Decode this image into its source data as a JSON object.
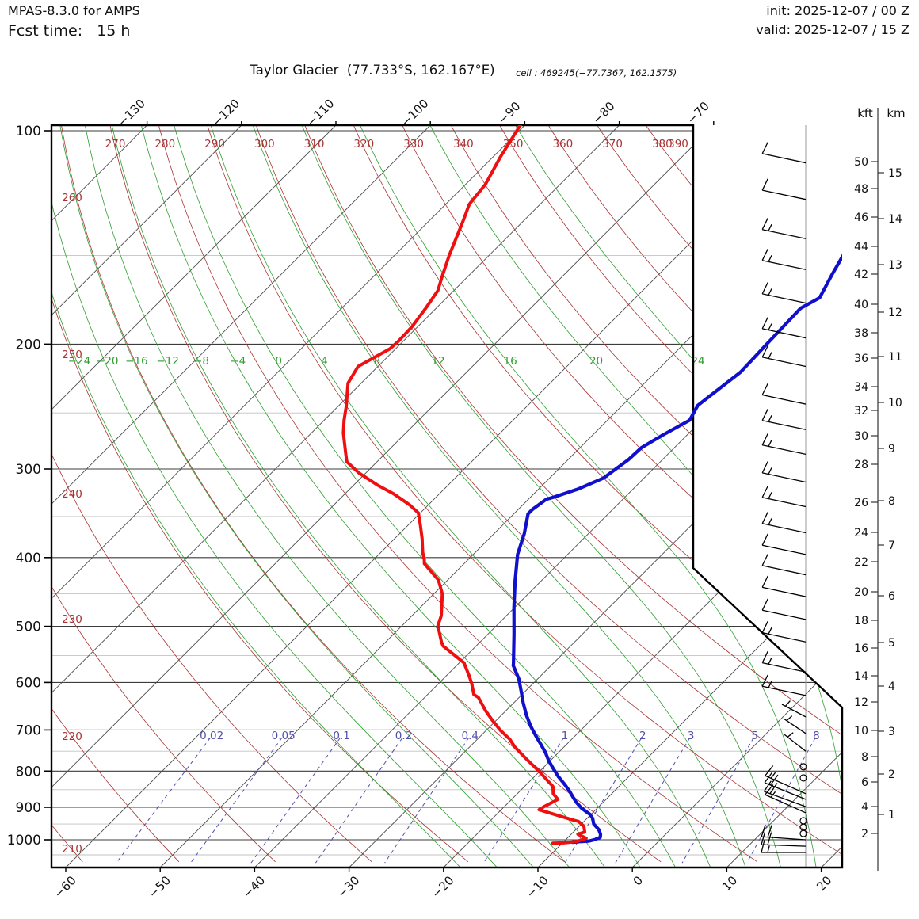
{
  "header": {
    "model": "MPAS-8.3.0 for AMPS",
    "fcst": "Fcst time:   15 h",
    "init": "init: 2025-12-07 / 00 Z",
    "valid": "valid: 2025-12-07 / 15 Z"
  },
  "title": {
    "main": "Taylor Glacier  (77.733°S, 162.167°E)",
    "cell": "cell : 469245(−77.7367, 162.1575)"
  },
  "colors": {
    "temperature": "#ee1010",
    "dewpoint": "#1010cc",
    "dry_adiabat": "#a83232",
    "moist_adiabat": "#2f9e2f",
    "mixing_ratio": "#5151ad",
    "isotherm": "#4a4a4a",
    "pressure_major": "#3c3c3c",
    "pressure_minor": "#c2c2c2",
    "border": "#000000",
    "barb": "#000000",
    "staff_line": "#999999"
  },
  "chart_data": {
    "type": "line",
    "subtype": "skew-t-log-p",
    "pressure_axis": {
      "unit": "hPa",
      "ticks": [
        100,
        200,
        300,
        400,
        500,
        600,
        700,
        800,
        900,
        1000
      ],
      "minor_ticks": [
        150,
        250,
        350,
        450,
        550,
        650,
        750,
        850,
        950,
        1050
      ]
    },
    "temp_ticks_top": [
      -130,
      -120,
      -110,
      -100,
      -90,
      -80,
      -70
    ],
    "temp_ticks_bottom": [
      -60,
      -50,
      -40,
      -30,
      -20,
      -10,
      0,
      10,
      20
    ],
    "dry_adiabats_K": [
      210,
      220,
      230,
      240,
      250,
      260,
      270,
      280,
      290,
      300,
      310,
      320,
      330,
      340,
      350,
      360,
      370,
      380,
      390
    ],
    "dry_adiabat_top_labels": [
      270,
      280,
      290,
      300,
      310,
      320,
      330,
      340,
      350,
      360,
      370,
      380,
      390
    ],
    "dry_adiabat_left_labels": [
      210,
      220,
      230,
      240,
      250,
      260
    ],
    "moist_adiabats_C": [
      -24,
      -20,
      -16,
      -12,
      -8,
      -4,
      0,
      4,
      8,
      12,
      16,
      20,
      24
    ],
    "mixing_ratio_g_kg": [
      0.02,
      0.05,
      0.1,
      0.2,
      0.4,
      1,
      2,
      3,
      5,
      8
    ],
    "height_axis": {
      "kft_label": "kft",
      "km_label": "km",
      "kft_ticks": [
        [
          50,
          204
        ],
        [
          48,
          238
        ],
        [
          46,
          274
        ],
        [
          44,
          311
        ],
        [
          42,
          346
        ],
        [
          40,
          384
        ],
        [
          38,
          420
        ],
        [
          36,
          452
        ],
        [
          34,
          488
        ],
        [
          32,
          518
        ],
        [
          30,
          550
        ],
        [
          28,
          586
        ],
        [
          26,
          634
        ],
        [
          24,
          672
        ],
        [
          22,
          709
        ],
        [
          20,
          747
        ],
        [
          18,
          783
        ],
        [
          16,
          818
        ],
        [
          14,
          853
        ],
        [
          12,
          886
        ],
        [
          10,
          922
        ],
        [
          8,
          955
        ],
        [
          6,
          987
        ],
        [
          4,
          1018
        ],
        [
          2,
          1052
        ]
      ],
      "km_ticks": [
        [
          15,
          218
        ],
        [
          14,
          276
        ],
        [
          13,
          334
        ],
        [
          12,
          394
        ],
        [
          11,
          450
        ],
        [
          10,
          508
        ],
        [
          9,
          566
        ],
        [
          8,
          632
        ],
        [
          7,
          688
        ],
        [
          6,
          752
        ],
        [
          5,
          811
        ],
        [
          4,
          866
        ],
        [
          3,
          923
        ],
        [
          2,
          977
        ],
        [
          1,
          1028
        ]
      ]
    },
    "series": {
      "temperature": [
        [
          98,
          -90.5
        ],
        [
          109,
          -89.2
        ],
        [
          119,
          -87.9
        ],
        [
          127,
          -87.5
        ],
        [
          134,
          -86.4
        ],
        [
          150,
          -84.2
        ],
        [
          160,
          -82.8
        ],
        [
          168,
          -81.7
        ],
        [
          178,
          -81.1
        ],
        [
          189,
          -80.6
        ],
        [
          198,
          -80.5
        ],
        [
          203,
          -80.6
        ],
        [
          215,
          -82.1
        ],
        [
          227,
          -81.4
        ],
        [
          245,
          -79.1
        ],
        [
          256,
          -77.9
        ],
        [
          267,
          -76.6
        ],
        [
          286,
          -74.1
        ],
        [
          293,
          -73.2
        ],
        [
          304,
          -70.7
        ],
        [
          316,
          -67.5
        ],
        [
          325,
          -64.9
        ],
        [
          337,
          -62.0
        ],
        [
          346,
          -60.2
        ],
        [
          360,
          -58.7
        ],
        [
          376,
          -57.1
        ],
        [
          393,
          -55.6
        ],
        [
          403,
          -54.6
        ],
        [
          408,
          -54.2
        ],
        [
          430,
          -51.0
        ],
        [
          450,
          -49.1
        ],
        [
          483,
          -46.9
        ],
        [
          499,
          -46.2
        ],
        [
          526,
          -44.1
        ],
        [
          533,
          -43.5
        ],
        [
          563,
          -39.5
        ],
        [
          568,
          -39.1
        ],
        [
          587,
          -37.6
        ],
        [
          602,
          -36.5
        ],
        [
          624,
          -35.1
        ],
        [
          630,
          -34.3
        ],
        [
          657,
          -32.2
        ],
        [
          675,
          -30.7
        ],
        [
          701,
          -28.5
        ],
        [
          721,
          -26.6
        ],
        [
          740,
          -25.2
        ],
        [
          767,
          -22.9
        ],
        [
          787,
          -21.2
        ],
        [
          804,
          -19.8
        ],
        [
          829,
          -17.9
        ],
        [
          841,
          -17.0
        ],
        [
          861,
          -16.2
        ],
        [
          877,
          -15.1
        ],
        [
          898,
          -15.8
        ],
        [
          907,
          -16.0
        ],
        [
          926,
          -13.1
        ],
        [
          938,
          -11.3
        ],
        [
          942,
          -10.6
        ],
        [
          957,
          -9.5
        ],
        [
          975,
          -8.8
        ],
        [
          982,
          -9.3
        ],
        [
          995,
          -8.0
        ],
        [
          1005,
          -8.6
        ],
        [
          1008,
          -9.3
        ],
        [
          1010,
          -9.9
        ],
        [
          1011,
          -11.0
        ]
      ],
      "dewpoint": [
        [
          150,
          -42.5
        ],
        [
          160,
          -41.6
        ],
        [
          172,
          -40.5
        ],
        [
          178,
          -41.4
        ],
        [
          200,
          -41.2
        ],
        [
          219,
          -41.0
        ],
        [
          244,
          -42.0
        ],
        [
          256,
          -41.3
        ],
        [
          269,
          -42.6
        ],
        [
          280,
          -43.5
        ],
        [
          291,
          -43.6
        ],
        [
          309,
          -44.3
        ],
        [
          320,
          -45.8
        ],
        [
          329,
          -47.6
        ],
        [
          331,
          -48.1
        ],
        [
          342,
          -48.5
        ],
        [
          347,
          -48.5
        ],
        [
          370,
          -46.8
        ],
        [
          396,
          -45.3
        ],
        [
          431,
          -42.8
        ],
        [
          470,
          -40.1
        ],
        [
          512,
          -37.3
        ],
        [
          564,
          -34.2
        ],
        [
          568,
          -34.0
        ],
        [
          593,
          -32.0
        ],
        [
          618,
          -30.4
        ],
        [
          641,
          -29.0
        ],
        [
          668,
          -27.3
        ],
        [
          692,
          -25.7
        ],
        [
          716,
          -24.0
        ],
        [
          734,
          -22.7
        ],
        [
          753,
          -21.4
        ],
        [
          773,
          -20.2
        ],
        [
          793,
          -18.9
        ],
        [
          814,
          -17.5
        ],
        [
          835,
          -16.0
        ],
        [
          853,
          -14.8
        ],
        [
          873,
          -13.6
        ],
        [
          886,
          -12.8
        ],
        [
          902,
          -11.7
        ],
        [
          921,
          -10.1
        ],
        [
          933,
          -9.4
        ],
        [
          950,
          -8.7
        ],
        [
          967,
          -7.6
        ],
        [
          982,
          -6.9
        ],
        [
          992,
          -6.6
        ],
        [
          999,
          -6.9
        ],
        [
          1004,
          -7.4
        ],
        [
          1006,
          -8.3
        ],
        [
          1008,
          -9.0
        ]
      ]
    },
    "wind_barbs": [
      [
        111,
        10,
        12
      ],
      [
        125,
        10,
        12
      ],
      [
        142,
        15,
        12
      ],
      [
        157,
        15,
        12
      ],
      [
        175,
        15,
        12
      ],
      [
        196,
        15,
        12
      ],
      [
        215,
        15,
        12
      ],
      [
        243,
        10,
        12
      ],
      [
        264,
        15,
        12
      ],
      [
        286,
        15,
        12
      ],
      [
        313,
        15,
        12
      ],
      [
        339,
        15,
        12
      ],
      [
        369,
        15,
        12
      ],
      [
        396,
        10,
        12
      ],
      [
        423,
        10,
        12
      ],
      [
        454,
        10,
        12
      ],
      [
        489,
        10,
        12
      ],
      [
        526,
        15,
        12
      ],
      [
        580,
        15,
        12
      ],
      [
        626,
        15,
        12
      ],
      [
        671,
        5,
        28
      ],
      [
        708,
        5,
        34
      ],
      [
        750,
        5,
        38
      ],
      [
        789,
        0,
        0
      ],
      [
        818,
        0,
        0
      ],
      [
        861,
        15,
        24
      ],
      [
        877,
        20,
        22
      ],
      [
        898,
        20,
        20
      ],
      [
        916,
        15,
        24
      ],
      [
        940,
        0,
        0
      ],
      [
        960,
        0,
        0
      ],
      [
        980,
        0,
        0
      ],
      [
        1000,
        20,
        4
      ],
      [
        1021,
        20,
        2
      ],
      [
        1042,
        15,
        0
      ]
    ]
  }
}
